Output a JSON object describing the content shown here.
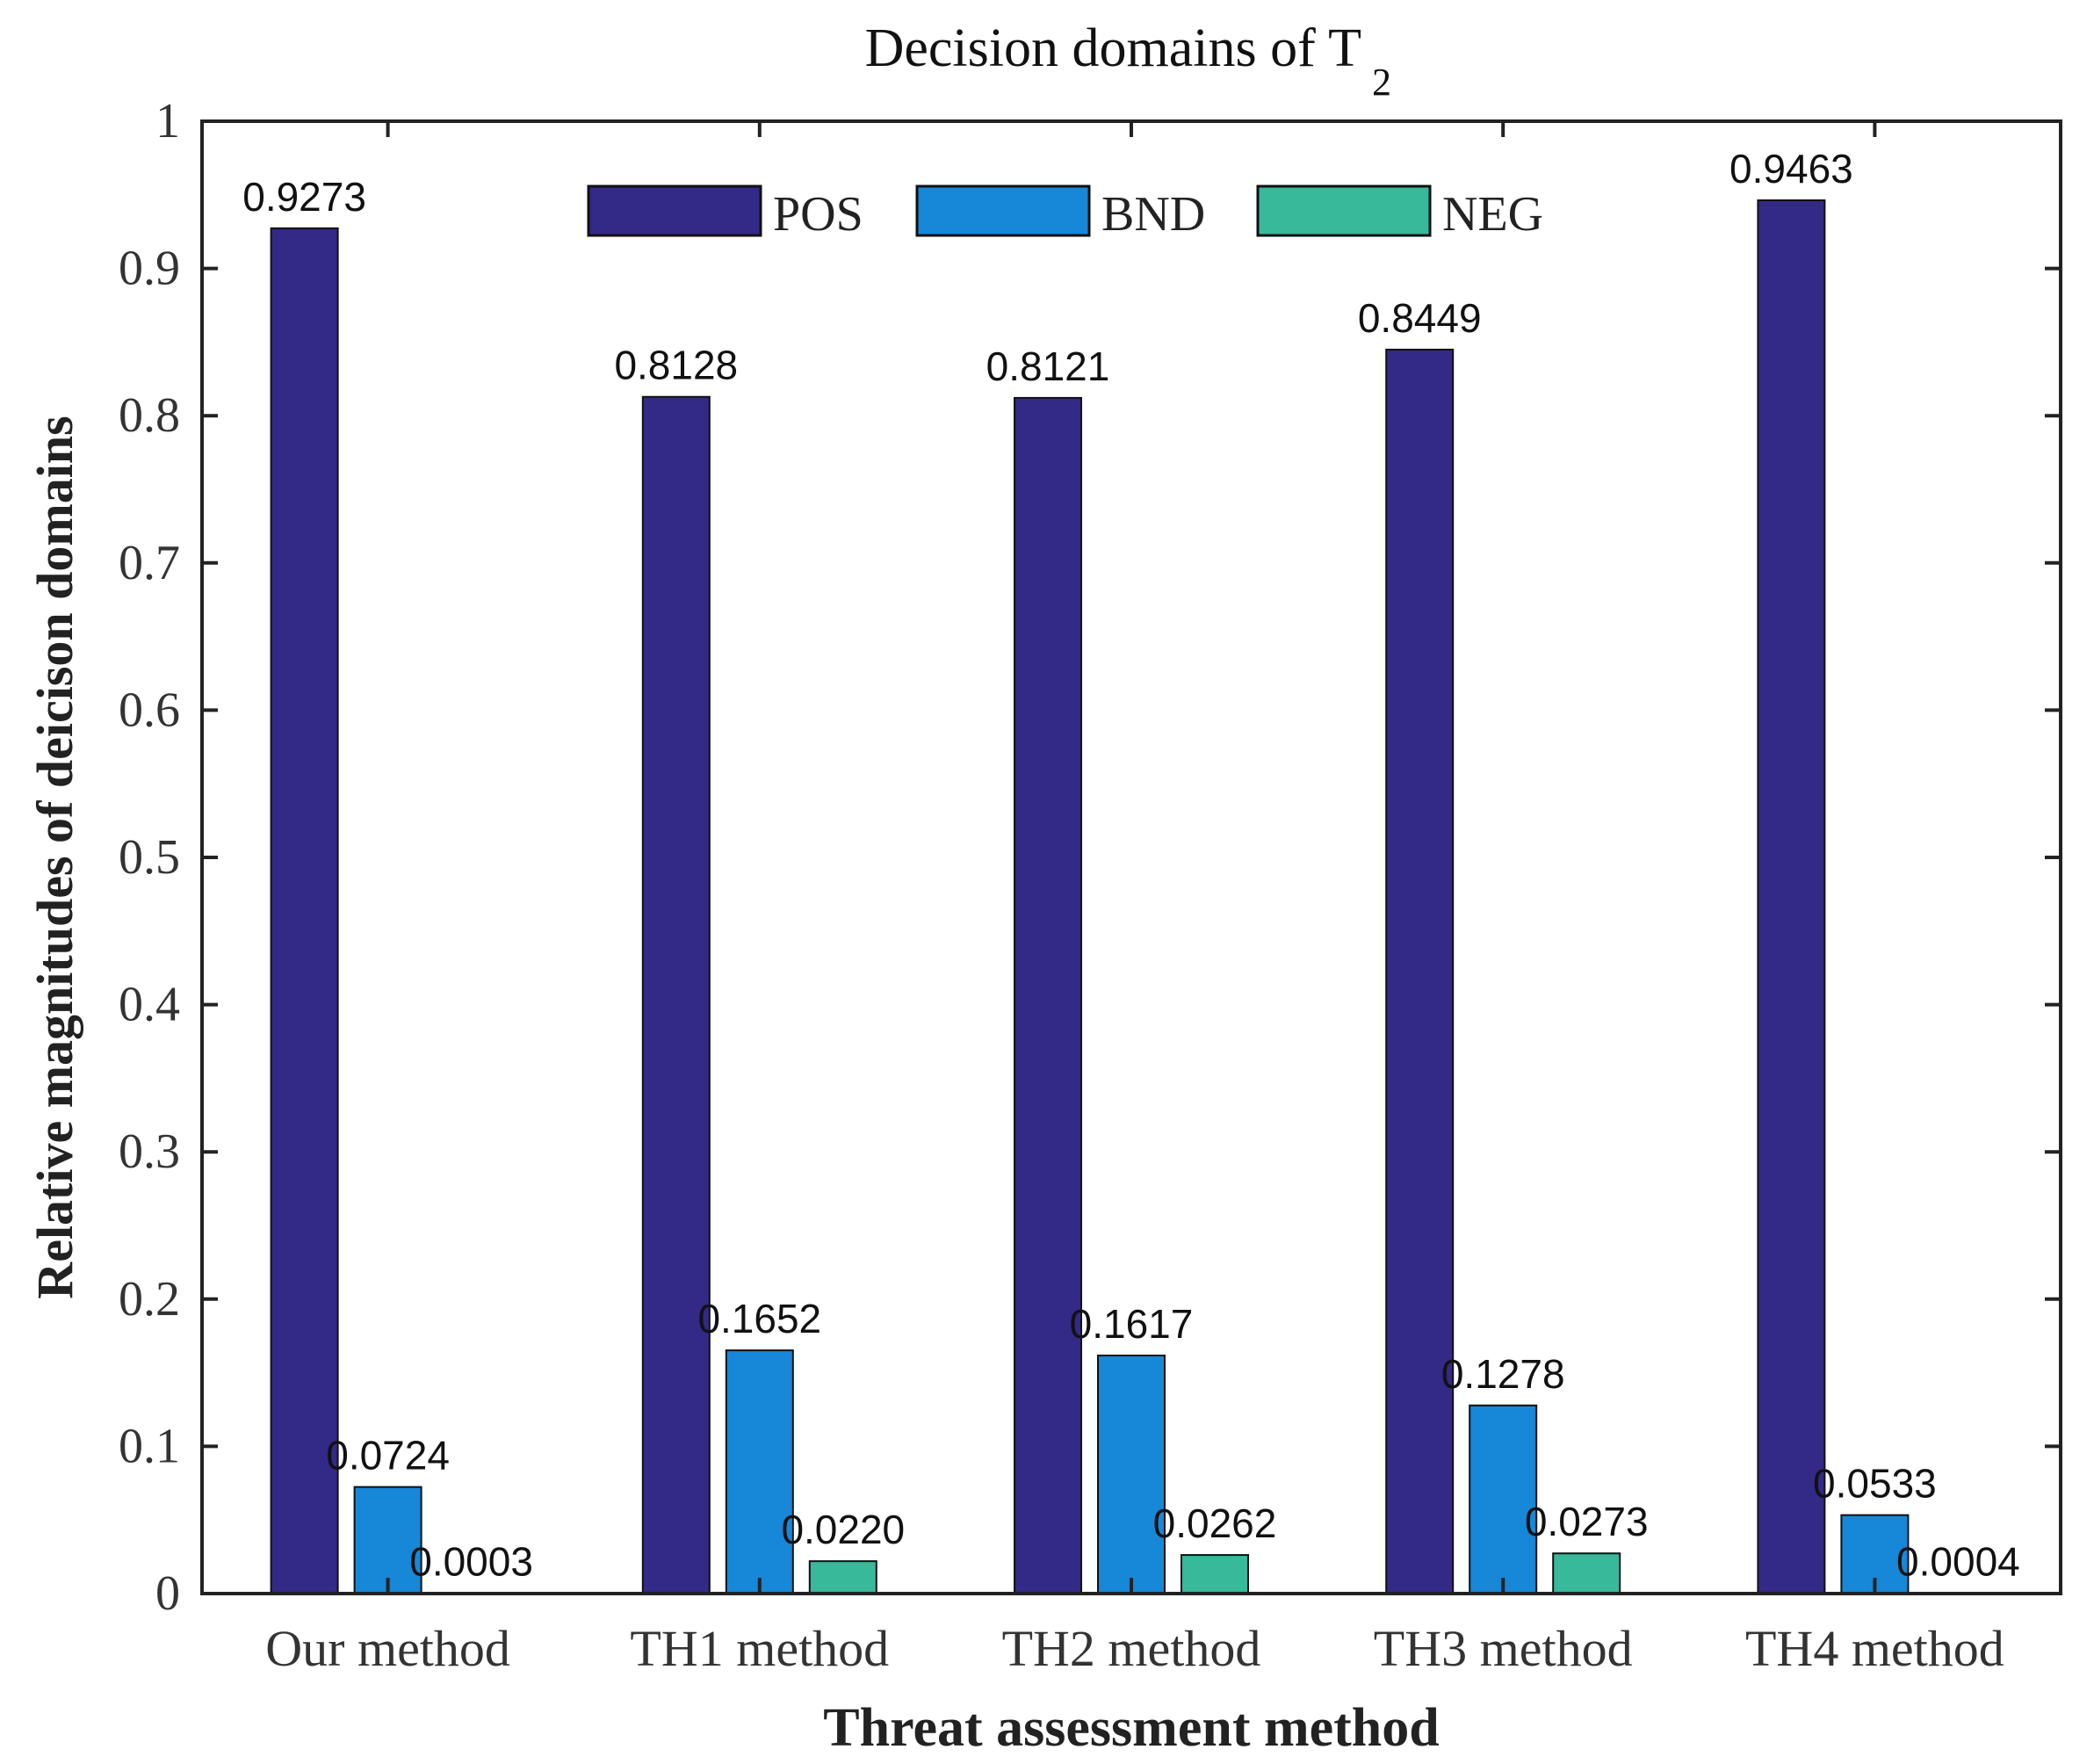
{
  "chart_data": {
    "type": "bar",
    "title_main": "Decision domains of T",
    "title_sub": "2",
    "xlabel": "Threat assessment method",
    "ylabel": "Relative magnitudes of deicison domains",
    "categories": [
      "Our method",
      "TH1 method",
      "TH2 method",
      "TH3 method",
      "TH4 method"
    ],
    "series": [
      {
        "name": "POS",
        "color": "#332986",
        "values": [
          0.9273,
          0.8128,
          0.8121,
          0.8449,
          0.9463
        ],
        "labels": [
          "0.9273",
          "0.8128",
          "0.8121",
          "0.8449",
          "0.9463"
        ]
      },
      {
        "name": "BND",
        "color": "#1787d8",
        "values": [
          0.0724,
          0.1652,
          0.1617,
          0.1278,
          0.0533
        ],
        "labels": [
          "0.0724",
          "0.1652",
          "0.1617",
          "0.1278",
          "0.0533"
        ]
      },
      {
        "name": "NEG",
        "color": "#37b99a",
        "values": [
          0.0003,
          0.022,
          0.0262,
          0.0273,
          0.0004
        ],
        "labels": [
          "0.0003",
          "0.0220",
          "0.0262",
          "0.0273",
          "0.0004"
        ]
      }
    ],
    "ylim": [
      0,
      1
    ],
    "yticks": [
      0,
      0.1,
      0.2,
      0.3,
      0.4,
      0.5,
      0.6,
      0.7,
      0.8,
      0.9,
      1
    ],
    "ytick_labels": [
      "0",
      "0.1",
      "0.2",
      "0.3",
      "0.4",
      "0.5",
      "0.6",
      "0.7",
      "0.8",
      "0.9",
      "1"
    ],
    "legend_position": "top-center",
    "grid": false
  }
}
